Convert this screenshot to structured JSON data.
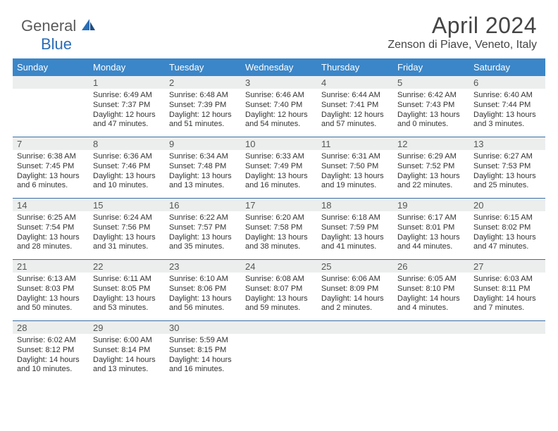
{
  "brand": {
    "part1": "General",
    "part2": "Blue"
  },
  "title": "April 2024",
  "location": "Zenson di Piave, Veneto, Italy",
  "colors": {
    "header_bg": "#3b86c8",
    "divider": "#3b6fa5",
    "daynum_bg": "#eceeee"
  },
  "dayNames": [
    "Sunday",
    "Monday",
    "Tuesday",
    "Wednesday",
    "Thursday",
    "Friday",
    "Saturday"
  ],
  "weeks": [
    [
      {
        "num": "",
        "lines": []
      },
      {
        "num": "1",
        "lines": [
          "Sunrise: 6:49 AM",
          "Sunset: 7:37 PM",
          "Daylight: 12 hours",
          "and 47 minutes."
        ]
      },
      {
        "num": "2",
        "lines": [
          "Sunrise: 6:48 AM",
          "Sunset: 7:39 PM",
          "Daylight: 12 hours",
          "and 51 minutes."
        ]
      },
      {
        "num": "3",
        "lines": [
          "Sunrise: 6:46 AM",
          "Sunset: 7:40 PM",
          "Daylight: 12 hours",
          "and 54 minutes."
        ]
      },
      {
        "num": "4",
        "lines": [
          "Sunrise: 6:44 AM",
          "Sunset: 7:41 PM",
          "Daylight: 12 hours",
          "and 57 minutes."
        ]
      },
      {
        "num": "5",
        "lines": [
          "Sunrise: 6:42 AM",
          "Sunset: 7:43 PM",
          "Daylight: 13 hours",
          "and 0 minutes."
        ]
      },
      {
        "num": "6",
        "lines": [
          "Sunrise: 6:40 AM",
          "Sunset: 7:44 PM",
          "Daylight: 13 hours",
          "and 3 minutes."
        ]
      }
    ],
    [
      {
        "num": "7",
        "lines": [
          "Sunrise: 6:38 AM",
          "Sunset: 7:45 PM",
          "Daylight: 13 hours",
          "and 6 minutes."
        ]
      },
      {
        "num": "8",
        "lines": [
          "Sunrise: 6:36 AM",
          "Sunset: 7:46 PM",
          "Daylight: 13 hours",
          "and 10 minutes."
        ]
      },
      {
        "num": "9",
        "lines": [
          "Sunrise: 6:34 AM",
          "Sunset: 7:48 PM",
          "Daylight: 13 hours",
          "and 13 minutes."
        ]
      },
      {
        "num": "10",
        "lines": [
          "Sunrise: 6:33 AM",
          "Sunset: 7:49 PM",
          "Daylight: 13 hours",
          "and 16 minutes."
        ]
      },
      {
        "num": "11",
        "lines": [
          "Sunrise: 6:31 AM",
          "Sunset: 7:50 PM",
          "Daylight: 13 hours",
          "and 19 minutes."
        ]
      },
      {
        "num": "12",
        "lines": [
          "Sunrise: 6:29 AM",
          "Sunset: 7:52 PM",
          "Daylight: 13 hours",
          "and 22 minutes."
        ]
      },
      {
        "num": "13",
        "lines": [
          "Sunrise: 6:27 AM",
          "Sunset: 7:53 PM",
          "Daylight: 13 hours",
          "and 25 minutes."
        ]
      }
    ],
    [
      {
        "num": "14",
        "lines": [
          "Sunrise: 6:25 AM",
          "Sunset: 7:54 PM",
          "Daylight: 13 hours",
          "and 28 minutes."
        ]
      },
      {
        "num": "15",
        "lines": [
          "Sunrise: 6:24 AM",
          "Sunset: 7:56 PM",
          "Daylight: 13 hours",
          "and 31 minutes."
        ]
      },
      {
        "num": "16",
        "lines": [
          "Sunrise: 6:22 AM",
          "Sunset: 7:57 PM",
          "Daylight: 13 hours",
          "and 35 minutes."
        ]
      },
      {
        "num": "17",
        "lines": [
          "Sunrise: 6:20 AM",
          "Sunset: 7:58 PM",
          "Daylight: 13 hours",
          "and 38 minutes."
        ]
      },
      {
        "num": "18",
        "lines": [
          "Sunrise: 6:18 AM",
          "Sunset: 7:59 PM",
          "Daylight: 13 hours",
          "and 41 minutes."
        ]
      },
      {
        "num": "19",
        "lines": [
          "Sunrise: 6:17 AM",
          "Sunset: 8:01 PM",
          "Daylight: 13 hours",
          "and 44 minutes."
        ]
      },
      {
        "num": "20",
        "lines": [
          "Sunrise: 6:15 AM",
          "Sunset: 8:02 PM",
          "Daylight: 13 hours",
          "and 47 minutes."
        ]
      }
    ],
    [
      {
        "num": "21",
        "lines": [
          "Sunrise: 6:13 AM",
          "Sunset: 8:03 PM",
          "Daylight: 13 hours",
          "and 50 minutes."
        ]
      },
      {
        "num": "22",
        "lines": [
          "Sunrise: 6:11 AM",
          "Sunset: 8:05 PM",
          "Daylight: 13 hours",
          "and 53 minutes."
        ]
      },
      {
        "num": "23",
        "lines": [
          "Sunrise: 6:10 AM",
          "Sunset: 8:06 PM",
          "Daylight: 13 hours",
          "and 56 minutes."
        ]
      },
      {
        "num": "24",
        "lines": [
          "Sunrise: 6:08 AM",
          "Sunset: 8:07 PM",
          "Daylight: 13 hours",
          "and 59 minutes."
        ]
      },
      {
        "num": "25",
        "lines": [
          "Sunrise: 6:06 AM",
          "Sunset: 8:09 PM",
          "Daylight: 14 hours",
          "and 2 minutes."
        ]
      },
      {
        "num": "26",
        "lines": [
          "Sunrise: 6:05 AM",
          "Sunset: 8:10 PM",
          "Daylight: 14 hours",
          "and 4 minutes."
        ]
      },
      {
        "num": "27",
        "lines": [
          "Sunrise: 6:03 AM",
          "Sunset: 8:11 PM",
          "Daylight: 14 hours",
          "and 7 minutes."
        ]
      }
    ],
    [
      {
        "num": "28",
        "lines": [
          "Sunrise: 6:02 AM",
          "Sunset: 8:12 PM",
          "Daylight: 14 hours",
          "and 10 minutes."
        ]
      },
      {
        "num": "29",
        "lines": [
          "Sunrise: 6:00 AM",
          "Sunset: 8:14 PM",
          "Daylight: 14 hours",
          "and 13 minutes."
        ]
      },
      {
        "num": "30",
        "lines": [
          "Sunrise: 5:59 AM",
          "Sunset: 8:15 PM",
          "Daylight: 14 hours",
          "and 16 minutes."
        ]
      },
      {
        "num": "",
        "lines": []
      },
      {
        "num": "",
        "lines": []
      },
      {
        "num": "",
        "lines": []
      },
      {
        "num": "",
        "lines": []
      }
    ]
  ]
}
